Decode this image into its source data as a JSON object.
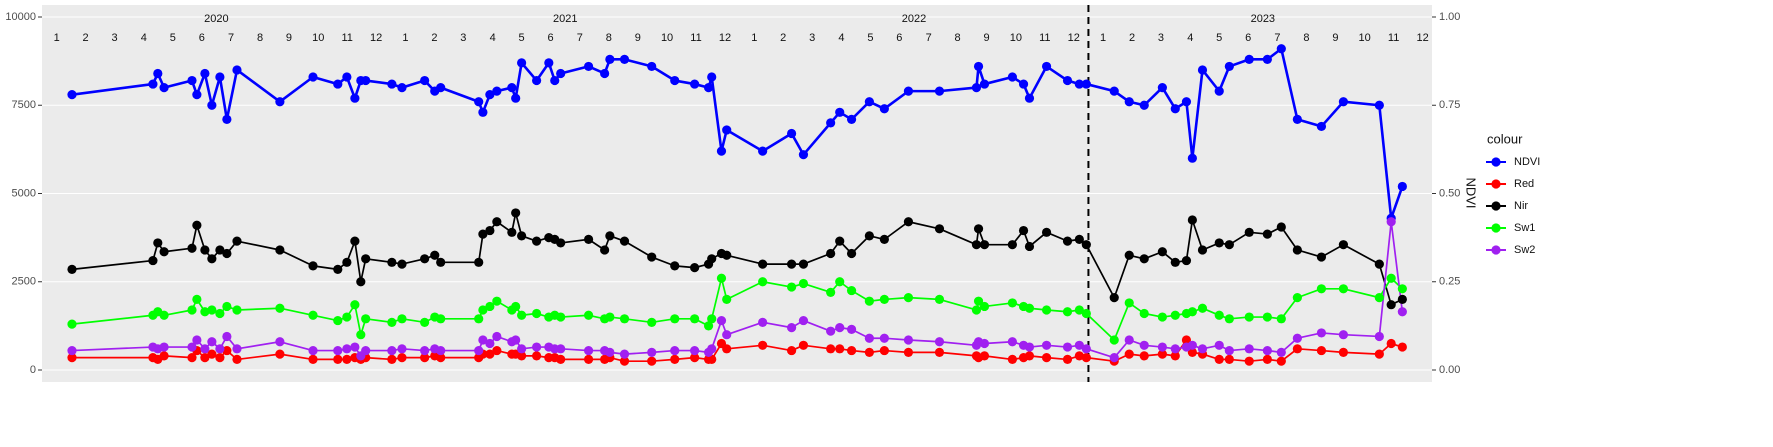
{
  "chart_data": {
    "type": "line",
    "x": [
      2020.086,
      2020.318,
      2020.332,
      2020.35,
      2020.43,
      2020.444,
      2020.467,
      2020.487,
      2020.51,
      2020.53,
      2020.559,
      2020.682,
      2020.777,
      2020.848,
      2020.874,
      2020.897,
      2020.914,
      2020.928,
      2021.003,
      2021.032,
      2021.097,
      2021.126,
      2021.143,
      2021.252,
      2021.264,
      2021.284,
      2021.304,
      2021.347,
      2021.358,
      2021.375,
      2021.418,
      2021.453,
      2021.47,
      2021.487,
      2021.567,
      2021.613,
      2021.628,
      2021.67,
      2021.748,
      2021.814,
      2021.871,
      2021.911,
      2021.92,
      2021.948,
      2021.963,
      2022.066,
      2022.149,
      2022.183,
      2022.261,
      2022.287,
      2022.321,
      2022.372,
      2022.415,
      2022.484,
      2022.573,
      2022.679,
      2022.685,
      2022.702,
      2022.782,
      2022.814,
      2022.831,
      2022.88,
      2022.94,
      2022.974,
      2022.994,
      2023.074,
      2023.117,
      2023.16,
      2023.212,
      2023.249,
      2023.281,
      2023.298,
      2023.327,
      2023.375,
      2023.404,
      2023.461,
      2023.513,
      2023.553,
      2023.599,
      2023.668,
      2023.731,
      2023.834,
      2023.868,
      2023.9
    ],
    "xlim": [
      2020.0,
      2023.985
    ],
    "ylim": [
      -340,
      10340
    ],
    "yticks": [
      0,
      2500,
      5000,
      7500,
      10000
    ],
    "y2lim": [
      -0.034,
      1.034
    ],
    "y2ticks": [
      {
        "value": 0,
        "label": "0.00"
      },
      {
        "value": 0.25,
        "label": "0.25"
      },
      {
        "value": 0.5,
        "label": "0.50"
      },
      {
        "value": 0.75,
        "label": "0.75"
      },
      {
        "value": 1,
        "label": "1.00"
      }
    ],
    "y2_label": "NDVI",
    "legend_title": "colour",
    "grid": true,
    "vline": 2023.0,
    "year_labels": [
      {
        "value": 2020.5,
        "label": "2020"
      },
      {
        "value": 2021.5,
        "label": "2021"
      },
      {
        "value": 2022.5,
        "label": "2022"
      },
      {
        "value": 2023.5,
        "label": "2023"
      }
    ],
    "month_labels": [
      {
        "value": 2020.042,
        "label": "1"
      },
      {
        "value": 2020.125,
        "label": "2"
      },
      {
        "value": 2020.208,
        "label": "3"
      },
      {
        "value": 2020.292,
        "label": "4"
      },
      {
        "value": 2020.375,
        "label": "5"
      },
      {
        "value": 2020.458,
        "label": "6"
      },
      {
        "value": 2020.542,
        "label": "7"
      },
      {
        "value": 2020.625,
        "label": "8"
      },
      {
        "value": 2020.708,
        "label": "9"
      },
      {
        "value": 2020.792,
        "label": "10"
      },
      {
        "value": 2020.875,
        "label": "11"
      },
      {
        "value": 2020.958,
        "label": "12"
      },
      {
        "value": 2021.042,
        "label": "1"
      },
      {
        "value": 2021.125,
        "label": "2"
      },
      {
        "value": 2021.208,
        "label": "3"
      },
      {
        "value": 2021.292,
        "label": "4"
      },
      {
        "value": 2021.375,
        "label": "5"
      },
      {
        "value": 2021.458,
        "label": "6"
      },
      {
        "value": 2021.542,
        "label": "7"
      },
      {
        "value": 2021.625,
        "label": "8"
      },
      {
        "value": 2021.708,
        "label": "9"
      },
      {
        "value": 2021.792,
        "label": "10"
      },
      {
        "value": 2021.875,
        "label": "11"
      },
      {
        "value": 2021.958,
        "label": "12"
      },
      {
        "value": 2022.042,
        "label": "1"
      },
      {
        "value": 2022.125,
        "label": "2"
      },
      {
        "value": 2022.208,
        "label": "3"
      },
      {
        "value": 2022.292,
        "label": "4"
      },
      {
        "value": 2022.375,
        "label": "5"
      },
      {
        "value": 2022.458,
        "label": "6"
      },
      {
        "value": 2022.542,
        "label": "7"
      },
      {
        "value": 2022.625,
        "label": "8"
      },
      {
        "value": 2022.708,
        "label": "9"
      },
      {
        "value": 2022.792,
        "label": "10"
      },
      {
        "value": 2022.875,
        "label": "11"
      },
      {
        "value": 2022.958,
        "label": "12"
      },
      {
        "value": 2023.042,
        "label": "1"
      },
      {
        "value": 2023.125,
        "label": "2"
      },
      {
        "value": 2023.208,
        "label": "3"
      },
      {
        "value": 2023.292,
        "label": "4"
      },
      {
        "value": 2023.375,
        "label": "5"
      },
      {
        "value": 2023.458,
        "label": "6"
      },
      {
        "value": 2023.542,
        "label": "7"
      },
      {
        "value": 2023.625,
        "label": "8"
      },
      {
        "value": 2023.708,
        "label": "9"
      },
      {
        "value": 2023.792,
        "label": "10"
      },
      {
        "value": 2023.875,
        "label": "11"
      },
      {
        "value": 2023.958,
        "label": "12"
      }
    ],
    "series": [
      {
        "name": "NDVI",
        "color": "#0000ff",
        "axis": "y2",
        "values": [
          0.78,
          0.81,
          0.84,
          0.8,
          0.82,
          0.78,
          0.84,
          0.75,
          0.83,
          0.71,
          0.85,
          0.76,
          0.83,
          0.81,
          0.83,
          0.77,
          0.82,
          0.82,
          0.81,
          0.8,
          0.82,
          0.79,
          0.8,
          0.76,
          0.73,
          0.78,
          0.79,
          0.8,
          0.77,
          0.87,
          0.82,
          0.87,
          0.82,
          0.84,
          0.86,
          0.84,
          0.88,
          0.88,
          0.86,
          0.82,
          0.81,
          0.8,
          0.83,
          0.62,
          0.68,
          0.62,
          0.67,
          0.61,
          0.7,
          0.73,
          0.71,
          0.76,
          0.74,
          0.79,
          0.79,
          0.8,
          0.86,
          0.81,
          0.83,
          0.81,
          0.77,
          0.86,
          0.82,
          0.81,
          0.81,
          0.79,
          0.76,
          0.75,
          0.8,
          0.74,
          0.76,
          0.6,
          0.85,
          0.79,
          0.86,
          0.88,
          0.88,
          0.91,
          0.71,
          0.69,
          0.76,
          0.75,
          0.43,
          0.52
        ]
      },
      {
        "name": "Red",
        "color": "#ff0000",
        "values": [
          350,
          350,
          300,
          400,
          350,
          550,
          350,
          450,
          350,
          550,
          300,
          450,
          300,
          300,
          300,
          350,
          300,
          350,
          300,
          350,
          350,
          400,
          350,
          350,
          450,
          450,
          550,
          450,
          450,
          400,
          400,
          350,
          350,
          300,
          300,
          300,
          350,
          250,
          250,
          300,
          350,
          300,
          300,
          750,
          600,
          700,
          550,
          700,
          600,
          600,
          550,
          500,
          550,
          500,
          500,
          400,
          350,
          400,
          300,
          350,
          400,
          350,
          300,
          400,
          350,
          250,
          450,
          400,
          450,
          400,
          850,
          500,
          450,
          300,
          300,
          250,
          300,
          250,
          600,
          550,
          500,
          450,
          750,
          650
        ]
      },
      {
        "name": "Nir",
        "color": "#000000",
        "values": [
          2850,
          3100,
          3600,
          3350,
          3450,
          4100,
          3400,
          3150,
          3400,
          3300,
          3650,
          3400,
          2950,
          2850,
          3050,
          3650,
          2500,
          3150,
          3050,
          3000,
          3150,
          3250,
          3050,
          3050,
          3850,
          3950,
          4200,
          3900,
          4450,
          3800,
          3650,
          3750,
          3700,
          3600,
          3700,
          3400,
          3800,
          3650,
          3200,
          2950,
          2900,
          3000,
          3150,
          3300,
          3250,
          3000,
          3000,
          3000,
          3300,
          3650,
          3300,
          3800,
          3700,
          4200,
          4000,
          3550,
          4000,
          3550,
          3550,
          3950,
          3500,
          3900,
          3650,
          3700,
          3550,
          2050,
          3250,
          3150,
          3350,
          3050,
          3100,
          4250,
          3400,
          3600,
          3550,
          3900,
          3850,
          4050,
          3400,
          3200,
          3550,
          3000,
          1850,
          2000
        ]
      },
      {
        "name": "Sw1",
        "color": "#00ff00",
        "values": [
          1300,
          1550,
          1650,
          1550,
          1700,
          2000,
          1650,
          1700,
          1600,
          1800,
          1700,
          1750,
          1550,
          1400,
          1500,
          1850,
          1000,
          1450,
          1350,
          1450,
          1350,
          1500,
          1450,
          1450,
          1700,
          1800,
          1950,
          1700,
          1800,
          1550,
          1600,
          1500,
          1550,
          1500,
          1550,
          1450,
          1500,
          1450,
          1350,
          1450,
          1450,
          1250,
          1450,
          2600,
          2000,
          2500,
          2350,
          2450,
          2200,
          2500,
          2250,
          1950,
          2000,
          2050,
          2000,
          1700,
          1950,
          1800,
          1900,
          1800,
          1750,
          1700,
          1650,
          1700,
          1600,
          850,
          1900,
          1600,
          1500,
          1550,
          1600,
          1650,
          1750,
          1550,
          1450,
          1500,
          1500,
          1450,
          2050,
          2300,
          2300,
          2050,
          2600,
          2300
        ]
      },
      {
        "name": "Sw2",
        "color": "#a020f0",
        "values": [
          550,
          650,
          600,
          650,
          650,
          850,
          600,
          800,
          600,
          950,
          600,
          800,
          550,
          550,
          600,
          650,
          400,
          550,
          550,
          600,
          550,
          600,
          550,
          550,
          850,
          750,
          950,
          800,
          850,
          600,
          650,
          650,
          600,
          600,
          550,
          550,
          500,
          450,
          500,
          550,
          550,
          500,
          600,
          1400,
          1000,
          1350,
          1200,
          1400,
          1100,
          1200,
          1150,
          900,
          900,
          850,
          800,
          700,
          800,
          750,
          800,
          700,
          650,
          700,
          650,
          700,
          600,
          350,
          850,
          700,
          650,
          600,
          650,
          700,
          600,
          700,
          550,
          600,
          550,
          500,
          900,
          1050,
          1000,
          950,
          4200,
          1650
        ]
      }
    ]
  }
}
